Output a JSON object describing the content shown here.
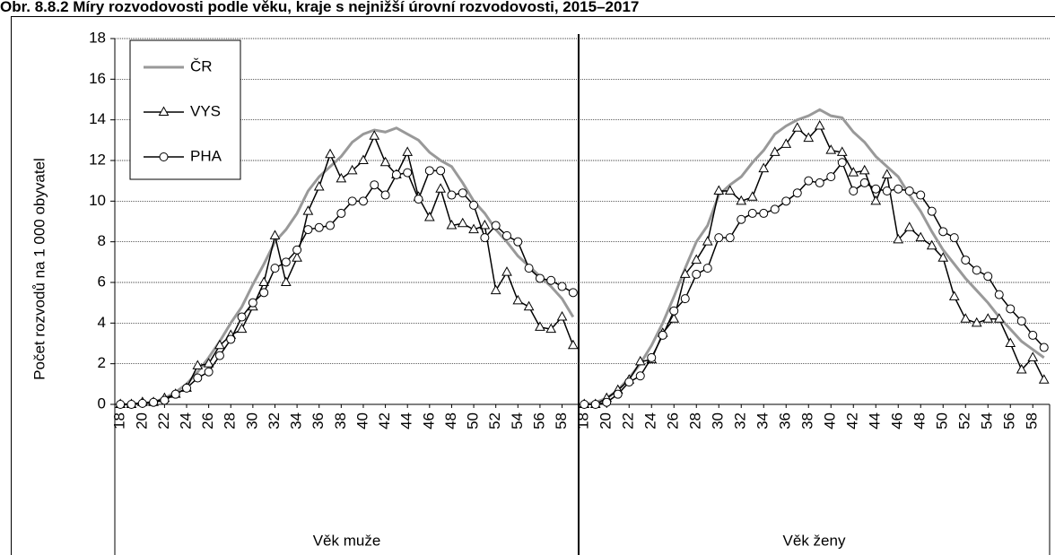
{
  "chart_data": [
    {
      "type": "line",
      "title": "Obr. 8.8.2 Míry rozvodovosti podle věku, kraje s nejnižší úrovní rozvodovosti, 2015–2017",
      "ylabel": "Počet rozvodů na 1 000 obyvatel",
      "xlabel": "Věk muže",
      "x": [
        18,
        19,
        20,
        21,
        22,
        23,
        24,
        25,
        26,
        27,
        28,
        29,
        30,
        31,
        32,
        33,
        34,
        35,
        36,
        37,
        38,
        39,
        40,
        41,
        42,
        43,
        44,
        45,
        46,
        47,
        48,
        49,
        50,
        51,
        52,
        53,
        54,
        55,
        56,
        57,
        58,
        59
      ],
      "xlim": [
        17.5,
        59.5
      ],
      "xticks": [
        18,
        20,
        22,
        24,
        26,
        28,
        30,
        32,
        34,
        36,
        38,
        40,
        42,
        44,
        46,
        48,
        50,
        52,
        54,
        56,
        58
      ],
      "ylim": [
        0,
        18
      ],
      "yticks": [
        0,
        2,
        4,
        6,
        8,
        10,
        12,
        14,
        16,
        18
      ],
      "grid": true,
      "legend": "upper left",
      "series": [
        {
          "name": "ČR",
          "color": "#999999",
          "marker": "none",
          "values": [
            0,
            0,
            0.05,
            0.1,
            0.3,
            0.6,
            1.0,
            1.6,
            2.3,
            3.1,
            4.0,
            4.8,
            5.9,
            6.9,
            8.0,
            8.6,
            9.4,
            10.5,
            11.2,
            11.7,
            12.2,
            12.9,
            13.3,
            13.5,
            13.4,
            13.6,
            13.3,
            13.0,
            12.4,
            12.0,
            11.7,
            10.9,
            10.0,
            9.4,
            8.6,
            8.0,
            7.3,
            6.8,
            6.3,
            5.8,
            5.2,
            4.3
          ]
        },
        {
          "name": "VYS",
          "color": "#000000",
          "marker": "triangle",
          "values": [
            0,
            0,
            0.1,
            0.1,
            0.3,
            0.5,
            0.8,
            1.9,
            2.0,
            2.9,
            3.4,
            3.7,
            4.8,
            6.0,
            8.3,
            6.0,
            7.2,
            9.5,
            10.7,
            12.3,
            11.1,
            11.5,
            12.0,
            13.2,
            11.9,
            11.3,
            12.4,
            10.2,
            9.2,
            10.6,
            8.8,
            8.9,
            8.6,
            8.8,
            5.6,
            6.5,
            5.1,
            4.8,
            3.8,
            3.7,
            4.3,
            2.9
          ]
        },
        {
          "name": "PHA",
          "color": "#000000",
          "marker": "circle",
          "values": [
            0,
            0,
            0.05,
            0.1,
            0.2,
            0.5,
            0.8,
            1.3,
            1.6,
            2.4,
            3.2,
            4.3,
            5.0,
            5.5,
            6.7,
            7.0,
            7.6,
            8.6,
            8.7,
            8.8,
            9.4,
            10.0,
            10.0,
            10.8,
            10.3,
            11.3,
            11.4,
            10.1,
            11.5,
            11.5,
            10.3,
            10.4,
            9.8,
            8.2,
            8.8,
            8.3,
            8.0,
            6.7,
            6.2,
            6.1,
            5.8,
            5.5
          ]
        }
      ]
    },
    {
      "type": "line",
      "xlabel": "Věk ženy",
      "x": [
        18,
        19,
        20,
        21,
        22,
        23,
        24,
        25,
        26,
        27,
        28,
        29,
        30,
        31,
        32,
        33,
        34,
        35,
        36,
        37,
        38,
        39,
        40,
        41,
        42,
        43,
        44,
        45,
        46,
        47,
        48,
        49,
        50,
        51,
        52,
        53,
        54,
        55,
        56,
        57,
        58,
        59
      ],
      "xlim": [
        17.5,
        59.5
      ],
      "xticks": [
        18,
        20,
        22,
        24,
        26,
        28,
        30,
        32,
        34,
        36,
        38,
        40,
        42,
        44,
        46,
        48,
        50,
        52,
        54,
        56,
        58
      ],
      "ylim": [
        0,
        18
      ],
      "yticks": [
        0,
        2,
        4,
        6,
        8,
        10,
        12,
        14,
        16,
        18
      ],
      "grid": true,
      "series": [
        {
          "color": "#999999",
          "marker": "none",
          "values": [
            0,
            0.1,
            0.3,
            0.7,
            1.3,
            2.0,
            2.9,
            4.0,
            5.3,
            6.7,
            8.0,
            8.8,
            10.3,
            10.8,
            11.2,
            11.9,
            12.5,
            13.3,
            13.7,
            14.0,
            14.2,
            14.5,
            14.2,
            14.1,
            13.4,
            12.9,
            12.2,
            11.7,
            11.2,
            10.3,
            9.5,
            8.5,
            7.6,
            6.9,
            6.2,
            5.6,
            5.0,
            4.3,
            3.7,
            3.1,
            2.7,
            2.3
          ]
        },
        {
          "color": "#000000",
          "marker": "triangle",
          "values": [
            0,
            0,
            0.3,
            0.7,
            1.2,
            2.1,
            2.2,
            3.5,
            4.2,
            6.4,
            7.1,
            8.0,
            10.5,
            10.5,
            10.0,
            10.2,
            11.6,
            12.4,
            12.8,
            13.6,
            13.1,
            13.7,
            12.5,
            12.4,
            11.4,
            11.5,
            10.0,
            11.3,
            8.1,
            8.7,
            8.2,
            7.8,
            7.2,
            5.3,
            4.2,
            4.0,
            4.2,
            4.2,
            3.0,
            1.7,
            2.3,
            1.2
          ]
        },
        {
          "color": "#000000",
          "marker": "circle",
          "values": [
            0,
            0,
            0.1,
            0.5,
            1.1,
            1.4,
            2.3,
            3.4,
            4.6,
            5.2,
            6.4,
            6.7,
            8.2,
            8.2,
            9.1,
            9.4,
            9.4,
            9.6,
            10.0,
            10.4,
            11.0,
            10.9,
            11.2,
            11.9,
            10.5,
            10.9,
            10.6,
            10.5,
            10.6,
            10.5,
            10.3,
            9.5,
            8.5,
            8.2,
            7.1,
            6.6,
            6.3,
            5.4,
            4.7,
            4.1,
            3.4,
            2.8
          ]
        }
      ]
    }
  ]
}
